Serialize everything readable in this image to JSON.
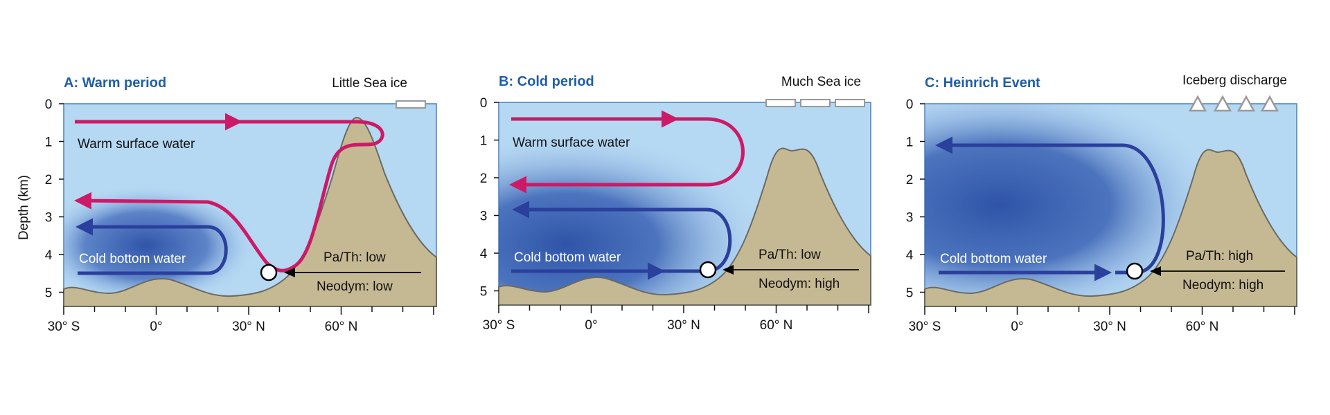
{
  "figure": {
    "y_axis_title": "Depth (km)",
    "depth_ticks": [
      "0",
      "1",
      "2",
      "3",
      "4",
      "5"
    ],
    "lat_ticks": [
      "30° S",
      "0°",
      "30° N",
      "60° N"
    ]
  },
  "colors": {
    "ocean": "#b5d8f3",
    "deep": "#2f54a8",
    "seafloor": "#c5b993",
    "seafloor_line": "#6b6a62",
    "warm_arrow": "#cc1a66",
    "cold_arrow": "#2b3f9c",
    "title": "#1f5ea8"
  },
  "panels": [
    {
      "title": "A: Warm period",
      "surface_feature": "Little Sea ice",
      "surface_water_label": "Warm surface water",
      "bottom_water_label": "Cold bottom water",
      "pa_th": "Pa/Th: low",
      "neodym": "Neodym: low"
    },
    {
      "title": "B: Cold period",
      "surface_feature": "Much Sea ice",
      "surface_water_label": "Warm surface water",
      "bottom_water_label": "Cold bottom water",
      "pa_th": "Pa/Th: low",
      "neodym": "Neodym: high"
    },
    {
      "title": "C: Heinrich Event",
      "surface_feature": "Iceberg discharge",
      "bottom_water_label": "Cold bottom water",
      "pa_th": "Pa/Th: high",
      "neodym": "Neodym: high"
    }
  ]
}
